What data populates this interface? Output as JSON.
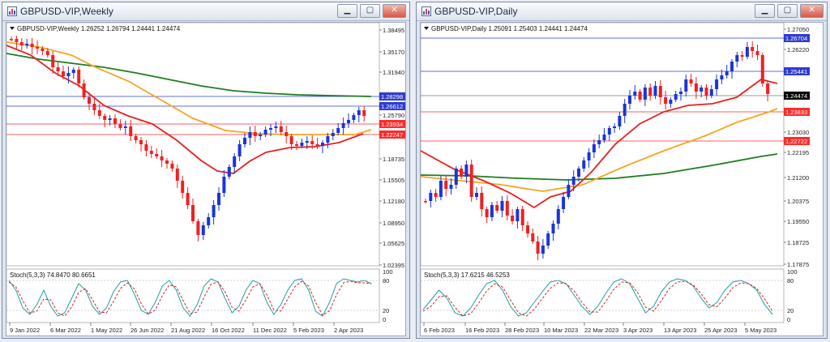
{
  "windows": [
    {
      "title": "GBPUSD-VIP,Weekly",
      "header": "GBPUSD-VIP,Weekly  1.26252 1.26794 1.24441 1.24474",
      "stoch_label": "Stoch(5,3,3) 74.8470 80.6651",
      "price_axis": [
        "1.38495",
        "1.35170",
        "1.31940",
        "1.25790",
        "1.18735",
        "1.15505",
        "1.12180",
        "1.08950",
        "1.05625",
        "1.02395"
      ],
      "price_labels": [
        {
          "text": "1.28298",
          "color": "#2f3bd1"
        },
        {
          "text": "1.26612",
          "color": "#2f3bd1"
        },
        {
          "text": "1.23934",
          "color": "#ff2a2a"
        },
        {
          "text": "1.22247",
          "color": "#ff2a2a"
        }
      ],
      "stoch_axis": [
        "100",
        "80",
        "20",
        "0"
      ],
      "date_axis": [
        "9 Jan 2022",
        "6 Mar 2022",
        "1 May 2022",
        "26 Jun 2022",
        "21 Aug 2022",
        "16 Oct 2022",
        "11 Dec 2022",
        "5 Feb 2023",
        "2 Apr 2023"
      ]
    },
    {
      "title": "GBPUSD-VIP,Daily",
      "header": "GBPUSD-VIP,Daily  1.25091 1.25403 1.24441 1.24474",
      "stoch_label": "Stoch(5,3,3) 17.6215 46.5253",
      "price_axis": [
        "1.27050",
        "1.26220",
        "1.23030",
        "1.22195",
        "1.21200",
        "1.20375",
        "1.19550",
        "1.18725",
        "1.17875"
      ],
      "price_labels": [
        {
          "text": "1.26704",
          "color": "#2f3bd1"
        },
        {
          "text": "1.25441",
          "color": "#2f3bd1"
        },
        {
          "text": "1.24474",
          "color": "#000000"
        },
        {
          "text": "1.23833",
          "color": "#ff2a2a"
        },
        {
          "text": "1.22722",
          "color": "#ff2a2a"
        }
      ],
      "stoch_axis": [
        "100",
        "80",
        "20",
        "0"
      ],
      "date_axis": [
        "6 Feb 2023",
        "16 Feb 2023",
        "28 Feb 2023",
        "10 Mar 2023",
        "22 Mar 2023",
        "3 Apr 2023",
        "13 Apr 2023",
        "25 Apr 2023",
        "5 May 2023"
      ]
    }
  ],
  "window_buttons": {
    "minimize": "▁",
    "maximize": "▢",
    "close": "✕"
  },
  "colors": {
    "bull": "#1a35d6",
    "bear": "#f02020",
    "ma_fast": "#e82020",
    "ma_mid": "#f5a623",
    "ma_slow": "#1e7d1e",
    "stoch_main": "#21a0a0",
    "stoch_signal": "#e02020",
    "level_blue": "#2f3bd1",
    "level_red": "#ff2a2a"
  }
}
